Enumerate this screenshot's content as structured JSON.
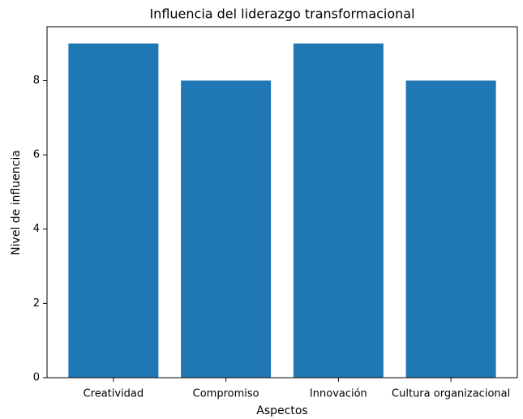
{
  "chart_data": {
    "type": "bar",
    "title": "Influencia del liderazgo transformacional",
    "x_label": "Aspectos",
    "y_label": "Nivel de influencia",
    "categories": [
      "Creatividad",
      "Compromiso",
      "Innovación",
      "Cultura organizacional"
    ],
    "values": [
      9,
      8,
      9,
      8
    ],
    "color": "#1f77b4",
    "ylim": [
      0,
      9.45
    ],
    "yticks": [
      0,
      2,
      4,
      6,
      8
    ],
    "grid": false
  }
}
